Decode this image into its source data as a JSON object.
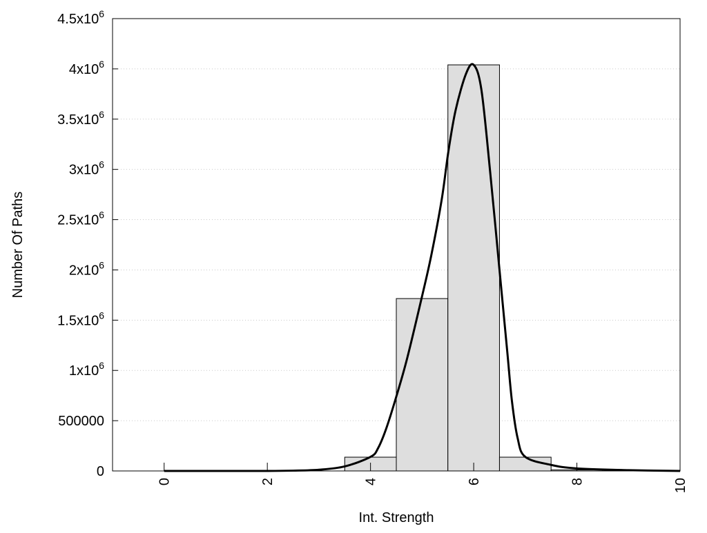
{
  "chart_data": {
    "type": "bar",
    "title": "",
    "xlabel": "Int. Strength",
    "ylabel": "Number Of Paths",
    "xlim": [
      -1,
      10
    ],
    "ylim": [
      0,
      4500000
    ],
    "grid": "horizontal dotted",
    "xticks": [
      {
        "value": 0,
        "label": "0"
      },
      {
        "value": 2,
        "label": "2"
      },
      {
        "value": 4,
        "label": "4"
      },
      {
        "value": 6,
        "label": "6"
      },
      {
        "value": 8,
        "label": "8"
      },
      {
        "value": 10,
        "label": "10"
      }
    ],
    "yticks": [
      {
        "value": 0,
        "label": "0",
        "exp": ""
      },
      {
        "value": 500000,
        "label": "500000",
        "exp": ""
      },
      {
        "value": 1000000,
        "label": "1x10",
        "exp": "6"
      },
      {
        "value": 1500000,
        "label": "1.5x10",
        "exp": "6"
      },
      {
        "value": 2000000,
        "label": "2x10",
        "exp": "6"
      },
      {
        "value": 2500000,
        "label": "2.5x10",
        "exp": "6"
      },
      {
        "value": 3000000,
        "label": "3x10",
        "exp": "6"
      },
      {
        "value": 3500000,
        "label": "3.5x10",
        "exp": "6"
      },
      {
        "value": 4000000,
        "label": "4x10",
        "exp": "6"
      },
      {
        "value": 4500000,
        "label": "4.5x10",
        "exp": "6"
      }
    ],
    "bars": [
      {
        "x": 4,
        "width": 1,
        "value": 137000
      },
      {
        "x": 5,
        "width": 1,
        "value": 1715000
      },
      {
        "x": 6,
        "width": 1,
        "value": 4040000
      },
      {
        "x": 7,
        "width": 1,
        "value": 137000
      },
      {
        "x": 8,
        "width": 1,
        "value": 10000
      }
    ],
    "bar_color": "#dedede",
    "curve": {
      "color": "#000000",
      "x": [
        0,
        1,
        2,
        2.5,
        3,
        3.5,
        4,
        4.15,
        4.31,
        4.5,
        4.71,
        5.0,
        5.18,
        5.38,
        5.51,
        5.65,
        5.85,
        6.0,
        6.15,
        6.32,
        6.5,
        6.65,
        6.74,
        6.85,
        7.0,
        7.5,
        8,
        9,
        10
      ],
      "y": [
        0,
        0,
        0,
        3000,
        12000,
        45000,
        140000,
        230000,
        430000,
        740000,
        1120000,
        1740000,
        2150000,
        2700000,
        3180000,
        3590000,
        3950000,
        4040000,
        3790000,
        2970000,
        2000000,
        1190000,
        700000,
        330000,
        140000,
        60000,
        25000,
        8000,
        0
      ]
    }
  }
}
